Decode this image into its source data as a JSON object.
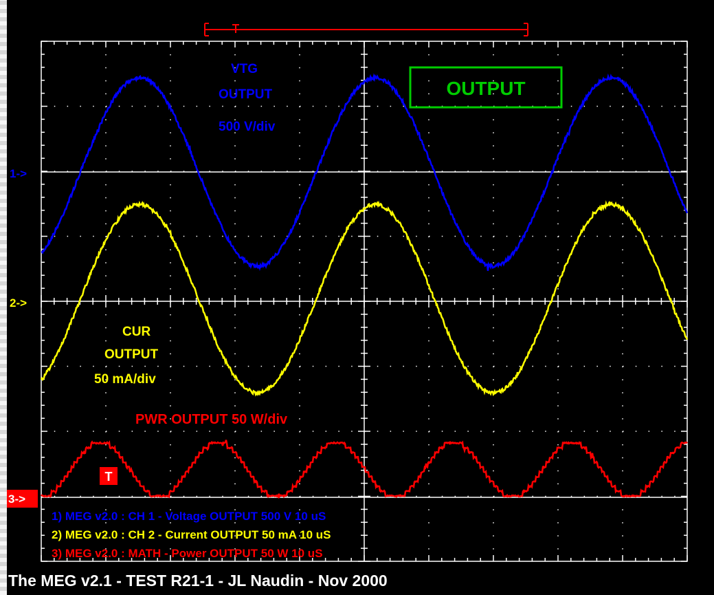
{
  "chart_data": {
    "type": "line",
    "grid": true,
    "x_divisions": 10,
    "y_divisions": 8,
    "time_per_div": "10 uS",
    "trigger_marker": "T",
    "colors": {
      "background": "#000000",
      "grid": "#ffffff",
      "ch1": "#0000ff",
      "ch2": "#ffff00",
      "ch3": "#ff0000",
      "box": "#00cc00"
    },
    "channel_markers": [
      "1->",
      "2->",
      "3->"
    ],
    "labels": {
      "vtg_line1": "VTG",
      "vtg_line2": "OUTPUT",
      "vtg_scale": "500 V/div",
      "cur_line1": "CUR",
      "cur_line2": "OUTPUT",
      "cur_scale": "50 mA/div",
      "pwr": "PWR OUTPUT 50 W/div",
      "output_box": "OUTPUT"
    },
    "legend": [
      "1) MEG v2.0 : CH 1 - Voltage OUTPUT 500  V 10 uS",
      "2) MEG v2.0 : CH 2 - Current OUTPUT 50 mA 10 uS",
      "3) MEG v2.0 : MATH - Power OUTPUT 50  W 10 uS"
    ],
    "series": [
      {
        "name": "CH 1 - Voltage OUTPUT",
        "unit": "div",
        "amplitude_div": 1.45,
        "offset_div": 0,
        "period_div": 3.65,
        "phase_deg": 60,
        "shape": "sine"
      },
      {
        "name": "CH 2 - Current OUTPUT",
        "unit": "div",
        "amplitude_div": 1.45,
        "offset_div": 0.05,
        "period_div": 3.65,
        "phase_deg": 60,
        "shape": "sine"
      },
      {
        "name": "MATH - Power OUTPUT",
        "unit": "div",
        "amplitude_div": 0.85,
        "offset_div": 0,
        "period_div": 1.825,
        "phase_deg": 0,
        "shape": "sine-squared"
      }
    ],
    "caption": "The MEG v2.1 - TEST R21-1 - JL Naudin - Nov 2000"
  }
}
